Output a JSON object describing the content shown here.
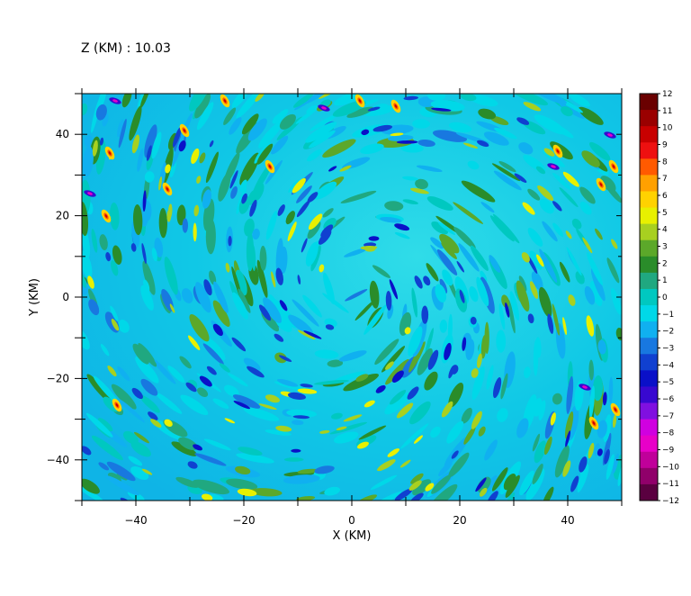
{
  "header": {
    "z_label": "Z (KM) : 10.03"
  },
  "chart_data": {
    "type": "heatmap",
    "title": "Z (KM) : 10.03",
    "xlabel": "X (KM)",
    "ylabel": "Y (KM)",
    "xlim": [
      -50,
      50
    ],
    "ylim": [
      -50,
      50
    ],
    "x_ticks": [
      -40,
      -20,
      0,
      20,
      40
    ],
    "y_ticks": [
      -40,
      -20,
      0,
      20,
      40
    ],
    "x_tick_labels": [
      "−40",
      "−20",
      "0",
      "20",
      "40"
    ],
    "y_tick_labels": [
      "−40",
      "−20",
      "0",
      "20",
      "40"
    ],
    "colorbar": {
      "min": -12,
      "max": 12,
      "levels": [
        12,
        11,
        10,
        9,
        8,
        7,
        6,
        5,
        4,
        3,
        2,
        1,
        0,
        -1,
        -2,
        -3,
        -4,
        -5,
        -6,
        -7,
        -8,
        -9,
        -10,
        -11,
        -12
      ],
      "labels": [
        "12",
        "11",
        "10",
        "9",
        "8",
        "7",
        "6",
        "5",
        "4",
        "3",
        "2",
        "1",
        "0",
        "−1",
        "−2",
        "−3",
        "−4",
        "−5",
        "−6",
        "−7",
        "−8",
        "−9",
        "−10",
        "−11",
        "−12"
      ],
      "colors": [
        "#6a0000",
        "#9a0000",
        "#c80000",
        "#ee1010",
        "#ff5a00",
        "#ffa000",
        "#ffd200",
        "#e8f000",
        "#a8d020",
        "#5ca82a",
        "#2a8c2a",
        "#20a880",
        "#00c8c0",
        "#00d8e8",
        "#10b0f0",
        "#1878e0",
        "#1040d0",
        "#0a10c8",
        "#3808d0",
        "#8010e0",
        "#d000e0",
        "#e800c8",
        "#c0009a",
        "#90006a",
        "#5a0040"
      ]
    },
    "grid": false,
    "legend": "colorbar-right"
  }
}
